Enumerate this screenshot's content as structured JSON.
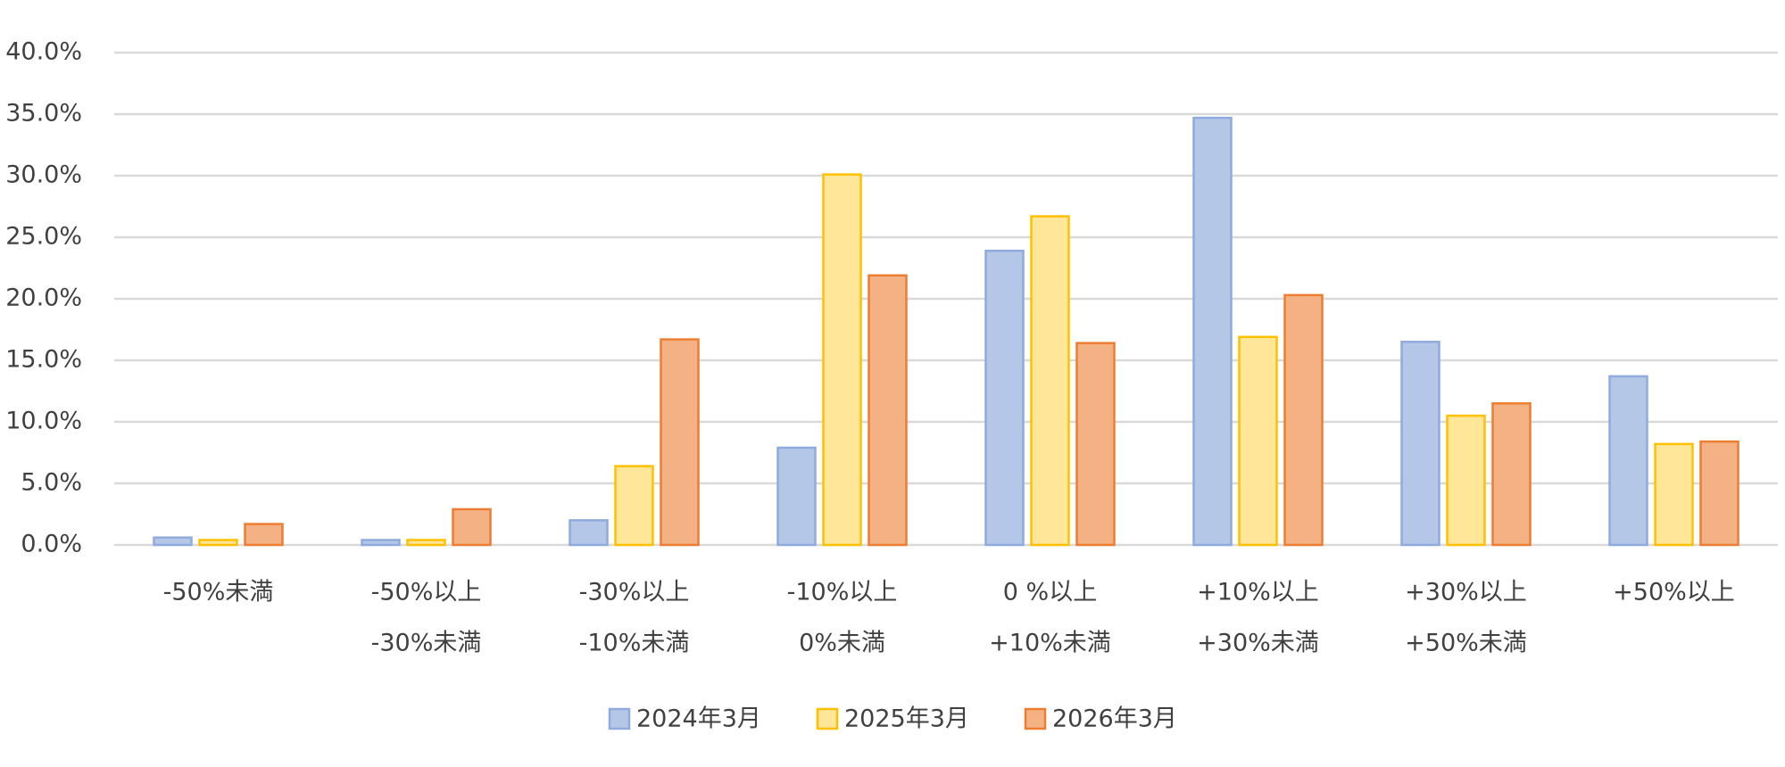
{
  "chart_data": {
    "type": "bar",
    "categories": [
      [
        "-50%未満"
      ],
      [
        "-50%以上",
        "-30%未満"
      ],
      [
        "-30%以上",
        "-10%未満"
      ],
      [
        "-10%以上",
        "0%未満"
      ],
      [
        "0 %以上",
        "+10%未満"
      ],
      [
        "+10%以上",
        "+30%未満"
      ],
      [
        "+30%以上",
        "+50%未満"
      ],
      [
        "+50%以上"
      ]
    ],
    "series": [
      {
        "name": "2024年3月",
        "color": "#b4c7e7",
        "edgecolor": "#8faadc",
        "values": [
          0.6,
          0.4,
          2.0,
          7.9,
          23.9,
          34.7,
          16.5,
          13.7
        ]
      },
      {
        "name": "2025年3月",
        "color": "#ffe699",
        "edgecolor": "#ffc000",
        "values": [
          0.4,
          0.4,
          6.4,
          30.1,
          26.7,
          16.9,
          10.5,
          8.2
        ]
      },
      {
        "name": "2026年3月",
        "color": "#f4b183",
        "edgecolor": "#ed7d31",
        "values": [
          1.7,
          2.9,
          16.7,
          21.9,
          16.4,
          20.3,
          11.5,
          8.4
        ]
      }
    ],
    "ylim": [
      0,
      40
    ],
    "yticks": [
      {
        "value": 0,
        "label": "0.0%"
      },
      {
        "value": 5,
        "label": "5.0%"
      },
      {
        "value": 10,
        "label": "10.0%"
      },
      {
        "value": 15,
        "label": "15.0%"
      },
      {
        "value": 20,
        "label": "20.0%"
      },
      {
        "value": 25,
        "label": "25.0%"
      },
      {
        "value": 30,
        "label": "30.0%"
      },
      {
        "value": 35,
        "label": "35.0%"
      },
      {
        "value": 40,
        "label": "40.0%"
      }
    ],
    "grid": true,
    "legend": "bottom"
  }
}
